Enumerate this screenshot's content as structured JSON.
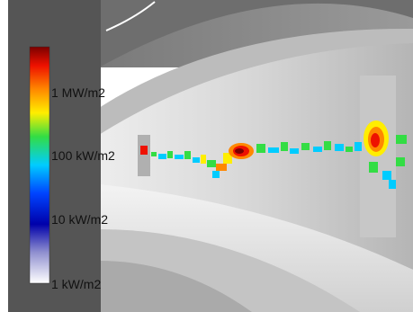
{
  "colorbar": {
    "ticks": [
      {
        "label": "1 MW/m2",
        "value": 1000
      },
      {
        "label": "100 kW/m2",
        "value": 100
      },
      {
        "label": "10 kW/m2",
        "value": 10
      },
      {
        "label": "1 kW/m2",
        "value": 1
      }
    ],
    "scale": "log",
    "colors": [
      "#ffffff",
      "#0000aa",
      "#0055ff",
      "#00ddff",
      "#33dd33",
      "#ffee00",
      "#ff8800",
      "#ee1100",
      "#7a0000"
    ]
  },
  "colors": {
    "background": "#ffffff",
    "frame_dark": "#555555",
    "wall_light": "#d8d8d8"
  }
}
